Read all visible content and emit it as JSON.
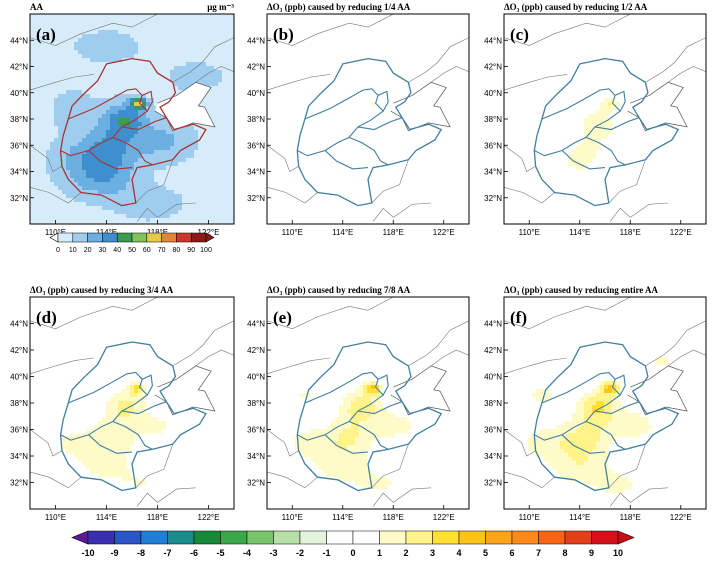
{
  "panels": [
    {
      "id": "a",
      "label": "(a)",
      "title_left": "AA",
      "title_right": "μg m⁻³",
      "type": "aa"
    },
    {
      "id": "b",
      "label": "(b)",
      "title_left": "ΔO₃ (ppb) caused by reducing 1/4 AA",
      "title_right": "",
      "type": "delta",
      "level": 0.25
    },
    {
      "id": "c",
      "label": "(c)",
      "title_left": "ΔO₃ (ppb) caused by reducing 1/2 AA",
      "title_right": "",
      "type": "delta",
      "level": 0.5
    },
    {
      "id": "d",
      "label": "(d)",
      "title_left": "ΔO₃ (ppb) caused by reducing 3/4 AA",
      "title_right": "",
      "type": "delta",
      "level": 0.75
    },
    {
      "id": "e",
      "label": "(e)",
      "title_left": "ΔO₃ (ppb) caused by reducing 7/8 AA",
      "title_right": "",
      "type": "delta",
      "level": 0.875
    },
    {
      "id": "f",
      "label": "(f)",
      "title_left": "ΔO₃ (ppb) caused by reducing entire AA",
      "title_right": "",
      "type": "delta",
      "level": 1.0
    }
  ],
  "lon_ticks": [
    "110°E",
    "114°E",
    "118°E",
    "122°E"
  ],
  "lat_ticks": [
    "44°N",
    "42°N",
    "40°N",
    "38°N",
    "36°N",
    "34°N",
    "32°N"
  ],
  "aa_colorbar": {
    "ticks": [
      "0",
      "10",
      "20",
      "30",
      "40",
      "50",
      "60",
      "70",
      "80",
      "90",
      "100"
    ],
    "colors": [
      "#ffffff",
      "#d6ecfa",
      "#9fcdf0",
      "#6baee0",
      "#3f8fcf",
      "#3c9a55",
      "#7fc15a",
      "#e6c84a",
      "#e0863a",
      "#c83a2e",
      "#8b1a1a"
    ]
  },
  "delta_colorbar": {
    "ticks": [
      "-10",
      "-9",
      "-8",
      "-7",
      "-6",
      "-5",
      "-4",
      "-3",
      "-2",
      "-1",
      "0",
      "1",
      "2",
      "3",
      "4",
      "5",
      "6",
      "7",
      "8",
      "9",
      "10"
    ],
    "colors": [
      "#5a1a9a",
      "#3a2fb0",
      "#2a55c8",
      "#1f7fd8",
      "#1a8c8a",
      "#178a3a",
      "#3aa84a",
      "#78c46a",
      "#b7e0a8",
      "#e3f3de",
      "#ffffff",
      "#ffffff",
      "#fffbc9",
      "#fff38a",
      "#ffe033",
      "#ffc21a",
      "#ffa31a",
      "#ff8a1a",
      "#f66414",
      "#e3401a",
      "#d4111a",
      "#c40f14"
    ]
  }
}
